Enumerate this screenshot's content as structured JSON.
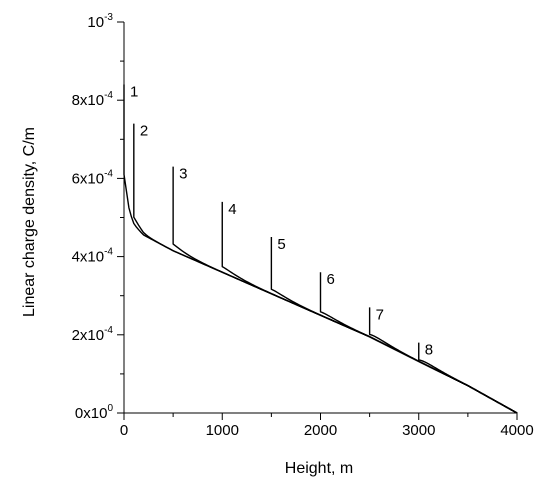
{
  "chart_data": {
    "type": "line",
    "xlabel": "Height, m",
    "ylabel": "Linear charge density, C/m",
    "xlim": [
      0,
      4000
    ],
    "ylim": [
      0,
      0.001
    ],
    "grid": false,
    "legend": "none",
    "line_color": "#000000",
    "x_ticks": [
      {
        "value": 0,
        "label": "0"
      },
      {
        "value": 1000,
        "label": "1000"
      },
      {
        "value": 2000,
        "label": "2000"
      },
      {
        "value": 3000,
        "label": "3000"
      },
      {
        "value": 4000,
        "label": "4000"
      }
    ],
    "y_ticks": [
      {
        "value": 0,
        "mantissa": "0x10",
        "exp": "0"
      },
      {
        "value": 0.0002,
        "mantissa": "2x10",
        "exp": "-4"
      },
      {
        "value": 0.0004,
        "mantissa": "4x10",
        "exp": "-4"
      },
      {
        "value": 0.0006,
        "mantissa": "6x10",
        "exp": "-4"
      },
      {
        "value": 0.0008,
        "mantissa": "8x10",
        "exp": "-4"
      },
      {
        "value": 0.001,
        "mantissa": "10",
        "exp": "-3"
      }
    ],
    "baseline": {
      "points": [
        [
          5,
          0.00059
        ],
        [
          20,
          0.00054
        ],
        [
          50,
          0.000505
        ],
        [
          100,
          0.00048
        ],
        [
          200,
          0.000455
        ],
        [
          500,
          0.000415
        ],
        [
          1000,
          0.00036
        ],
        [
          1500,
          0.000305
        ],
        [
          2000,
          0.00025
        ],
        [
          2500,
          0.000195
        ],
        [
          3000,
          0.000132
        ],
        [
          3500,
          7e-05
        ],
        [
          4000,
          0.0
        ]
      ]
    },
    "series": [
      {
        "label": "1",
        "x_start": 0,
        "peak": 0.00084,
        "width": 30
      },
      {
        "label": "2",
        "x_start": 100,
        "peak": 0.00074,
        "width": 50
      },
      {
        "label": "3",
        "x_start": 500,
        "peak": 0.00063,
        "width": 90
      },
      {
        "label": "4",
        "x_start": 1000,
        "peak": 0.00054,
        "width": 100
      },
      {
        "label": "5",
        "x_start": 1500,
        "peak": 0.00045,
        "width": 100
      },
      {
        "label": "6",
        "x_start": 2000,
        "peak": 0.00036,
        "width": 100
      },
      {
        "label": "7",
        "x_start": 2500,
        "peak": 0.00027,
        "width": 100
      },
      {
        "label": "8",
        "x_start": 3000,
        "peak": 0.00018,
        "width": 100
      }
    ]
  }
}
